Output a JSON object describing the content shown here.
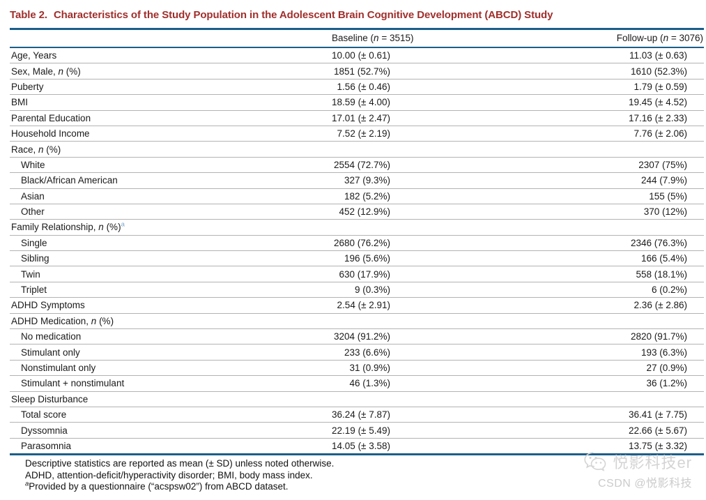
{
  "title": {
    "label": "Table 2.",
    "text": "Characteristics of the Study Population in the Adolescent Brain Cognitive Development (ABCD) Study"
  },
  "table": {
    "header": {
      "baseline": "Baseline ({n} = 3515)",
      "followup": "Follow-up ({n} = 3076)"
    },
    "rows": [
      {
        "type": "item",
        "label": "Age, Years",
        "baseline": "10.00 (± 0.61)",
        "followup": "11.03 (± 0.63)"
      },
      {
        "type": "item",
        "label": "Sex, Male, {n} (%)",
        "baseline": "1851 (52.7%)",
        "followup": "1610 (52.3%)"
      },
      {
        "type": "item",
        "label": "Puberty",
        "baseline": "1.56 (± 0.46)",
        "followup": "1.79 (± 0.59)"
      },
      {
        "type": "item",
        "label": "BMI",
        "baseline": "18.59 (± 4.00)",
        "followup": "19.45 (± 4.52)"
      },
      {
        "type": "item",
        "label": "Parental Education",
        "baseline": "17.01 (± 2.47)",
        "followup": "17.16 (± 2.33)"
      },
      {
        "type": "item",
        "label": "Household Income",
        "baseline": "7.52 (± 2.19)",
        "followup": "7.76 (± 2.06)"
      },
      {
        "type": "section",
        "label": "Race, {n} (%)",
        "baseline": "",
        "followup": ""
      },
      {
        "type": "sub",
        "label": "White",
        "baseline": "2554 (72.7%)",
        "followup": "2307 (75%)"
      },
      {
        "type": "sub",
        "label": "Black/African American",
        "baseline": "327 (9.3%)",
        "followup": "244 (7.9%)"
      },
      {
        "type": "sub",
        "label": "Asian",
        "baseline": "182 (5.2%)",
        "followup": "155 (5%)"
      },
      {
        "type": "sub",
        "label": "Other",
        "baseline": "452 (12.9%)",
        "followup": "370 (12%)"
      },
      {
        "type": "section",
        "label": "Family Relationship, {n} (%){^a}",
        "baseline": "",
        "followup": ""
      },
      {
        "type": "sub",
        "label": "Single",
        "baseline": "2680 (76.2%)",
        "followup": "2346 (76.3%)"
      },
      {
        "type": "sub",
        "label": "Sibling",
        "baseline": "196 (5.6%)",
        "followup": "166 (5.4%)"
      },
      {
        "type": "sub",
        "label": "Twin",
        "baseline": "630 (17.9%)",
        "followup": "558 (18.1%)"
      },
      {
        "type": "sub",
        "label": "Triplet",
        "baseline": "9 (0.3%)",
        "followup": "6 (0.2%)"
      },
      {
        "type": "item",
        "label": "ADHD Symptoms",
        "baseline": "2.54 (± 2.91)",
        "followup": "2.36 (± 2.86)"
      },
      {
        "type": "section",
        "label": "ADHD Medication, {n} (%)",
        "baseline": "",
        "followup": ""
      },
      {
        "type": "sub",
        "label": "No medication",
        "baseline": "3204 (91.2%)",
        "followup": "2820 (91.7%)"
      },
      {
        "type": "sub",
        "label": "Stimulant only",
        "baseline": "233 (6.6%)",
        "followup": "193 (6.3%)"
      },
      {
        "type": "sub",
        "label": "Nonstimulant only",
        "baseline": "31 (0.9%)",
        "followup": "27 (0.9%)"
      },
      {
        "type": "sub",
        "label": "Stimulant + nonstimulant",
        "baseline": "46 (1.3%)",
        "followup": "36 (1.2%)"
      },
      {
        "type": "section",
        "label": "Sleep Disturbance",
        "baseline": "",
        "followup": ""
      },
      {
        "type": "sub",
        "label": "Total score",
        "baseline": "36.24 (± 7.87)",
        "followup": "36.41 (± 7.75)"
      },
      {
        "type": "sub",
        "label": "Dyssomnia",
        "baseline": "22.19 (± 5.49)",
        "followup": "22.66 (± 5.67)"
      },
      {
        "type": "sub",
        "label": "Parasomnia",
        "baseline": "14.05 (± 3.58)",
        "followup": "13.75 (± 3.32)"
      }
    ]
  },
  "footnotes": [
    "Descriptive statistics are reported as mean (± SD) unless noted otherwise.",
    "ADHD, attention-deficit/hyperactivity disorder; BMI, body mass index.",
    "{^a}Provided by a questionnaire (“acspsw02”) from ABCD dataset."
  ],
  "watermark": {
    "line1": "悦影科技er",
    "line2": "CSDN @悦影科技",
    "icon": "wechat-icon"
  },
  "colors": {
    "accent_blue": "#1b5e8a",
    "title_red": "#a02f2c",
    "divider_gray": "#b3b3b3",
    "table_sup_blue": "#7ba7cb",
    "watermark_gray": "#d0d0d0"
  }
}
